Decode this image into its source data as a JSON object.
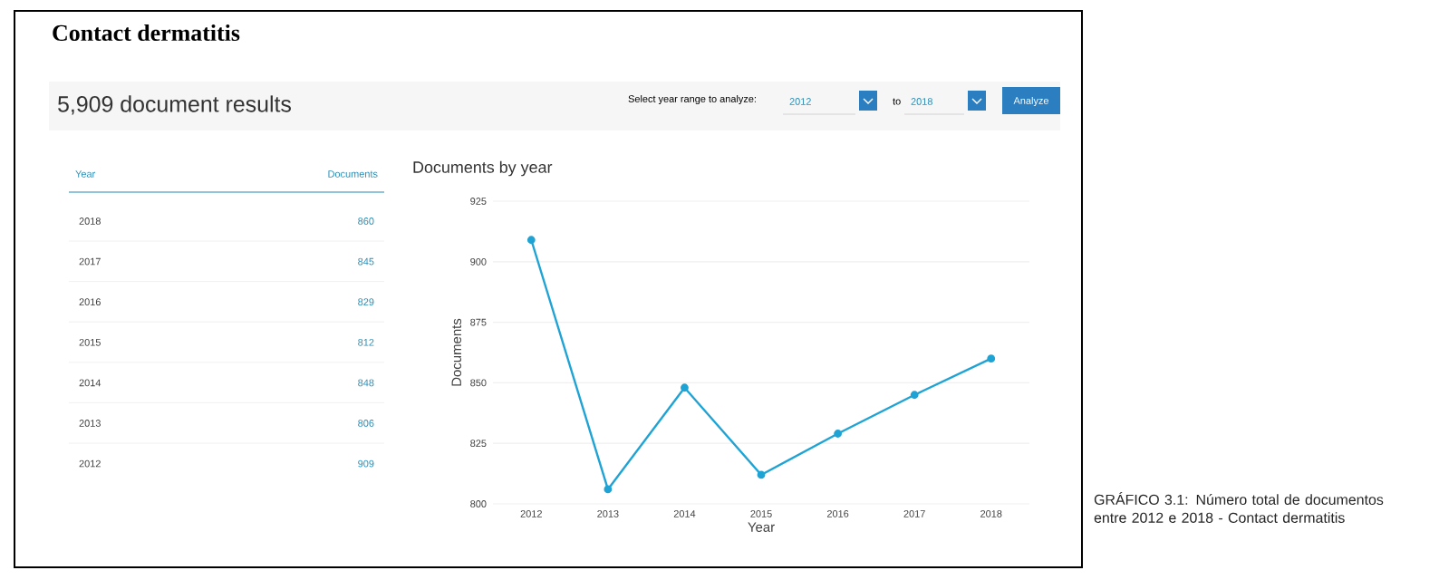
{
  "chart_data": {
    "type": "line",
    "title": "Documents by year",
    "categories": [
      "2012",
      "2013",
      "2014",
      "2015",
      "2016",
      "2017",
      "2018"
    ],
    "values": [
      909,
      806,
      848,
      812,
      829,
      845,
      860
    ],
    "color": "#1fa3d5",
    "marker": "circle",
    "line_style": "solid",
    "grid": "y",
    "xlabel": "Year",
    "ylabel": "Documents",
    "ylim": [
      800,
      925
    ],
    "yticks": [
      800,
      825,
      850,
      875,
      900,
      925
    ],
    "annotations": [
      "Contact dermatitis",
      "5,909 document results",
      "Select year range to analyze:",
      "2012",
      "to",
      "2018",
      "Analyze",
      "Year",
      "Documents",
      "GRÁFICO 3.1: Número total de documentos entre 2012 e 2018 - Contact dermatitis",
      "2018",
      "860",
      "2017",
      "845",
      "2016",
      "829",
      "2015",
      "812",
      "2014",
      "848",
      "2013",
      "806",
      "2012",
      "909"
    ]
  }
}
